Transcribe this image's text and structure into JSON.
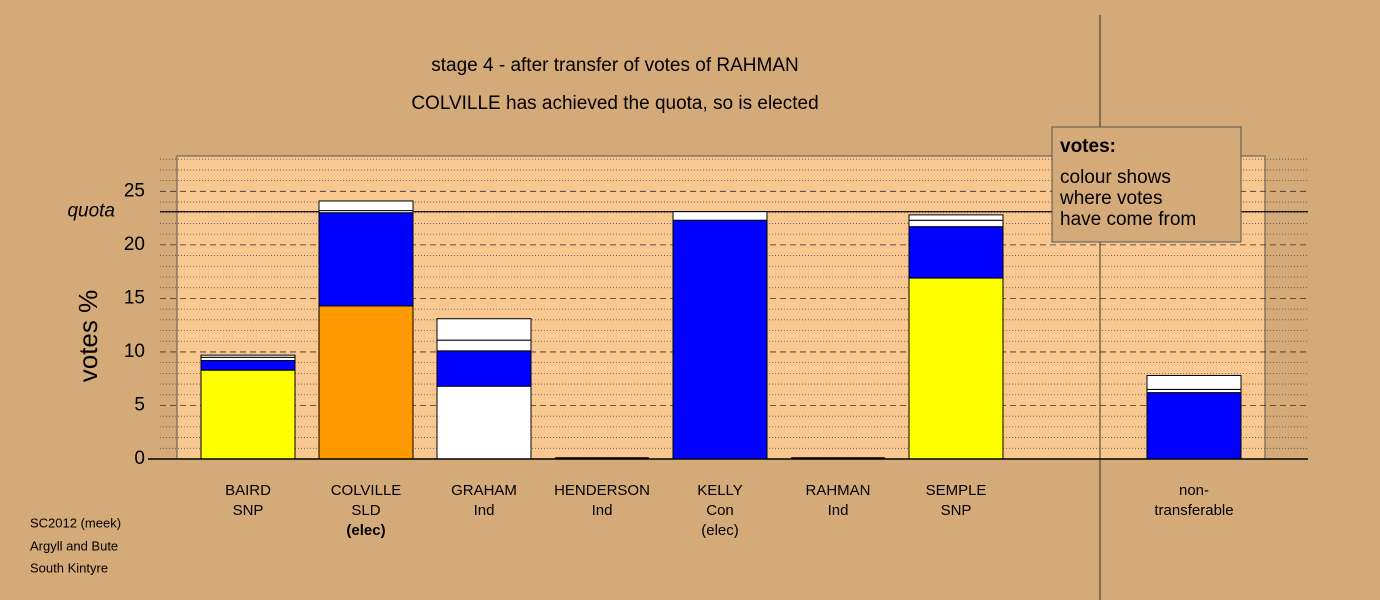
{
  "chart_data": {
    "type": "bar",
    "stacked": true,
    "title": "stage 4 - after transfer of votes of RAHMAN",
    "subtitle": "COLVILLE has achieved the quota, so is elected",
    "y_label": "votes %",
    "categories": [
      "BAIRD",
      "COLVILLE",
      "GRAHAM",
      "HENDERSON",
      "KELLY",
      "RAHMAN",
      "SEMPLE",
      "non-"
    ],
    "parties": [
      "SNP",
      "SLD",
      "Ind",
      "Ind",
      "Con",
      "Ind",
      "SNP",
      "transferable"
    ],
    "status": [
      null,
      "(elec)",
      null,
      null,
      "(elec)",
      null,
      null,
      null
    ],
    "series": [
      {
        "color": "#ffff00",
        "values": [
          8.3,
          null,
          null,
          null,
          null,
          null,
          16.9,
          null
        ]
      },
      {
        "color": "#ff9900",
        "values": [
          null,
          14.3,
          null,
          null,
          null,
          null,
          null,
          null
        ]
      },
      {
        "color": "#ffffff",
        "values": [
          null,
          null,
          6.8,
          null,
          null,
          null,
          null,
          null
        ]
      },
      {
        "color": "#0000ff",
        "values": [
          0.9,
          8.7,
          3.3,
          null,
          22.3,
          null,
          4.8,
          6.2
        ]
      },
      {
        "color": "#ffffff",
        "values": [
          0.3,
          0.2,
          1.0,
          null,
          0.8,
          null,
          0.6,
          0.3
        ]
      },
      {
        "color": "#ffffff",
        "values": [
          0.2,
          0.9,
          2.0,
          null,
          null,
          null,
          0.5,
          1.3
        ]
      }
    ],
    "quota": 23.1,
    "quota_label": "quota",
    "ylim": [
      0,
      28.3
    ],
    "yticks": [
      0,
      5,
      10,
      15,
      20,
      25
    ],
    "minor_yticks": [
      1,
      2,
      3,
      4,
      6,
      7,
      8,
      9,
      11,
      12,
      13,
      14,
      16,
      17,
      18,
      19,
      21,
      22,
      23,
      24,
      26,
      27,
      28
    ],
    "grid": true,
    "note": {
      "title": "votes:",
      "lines": [
        "colour shows",
        "where votes",
        "have come from"
      ]
    },
    "footer": [
      "SC2012 (meek)",
      "Argyll and Bute",
      "South Kintyre"
    ]
  }
}
